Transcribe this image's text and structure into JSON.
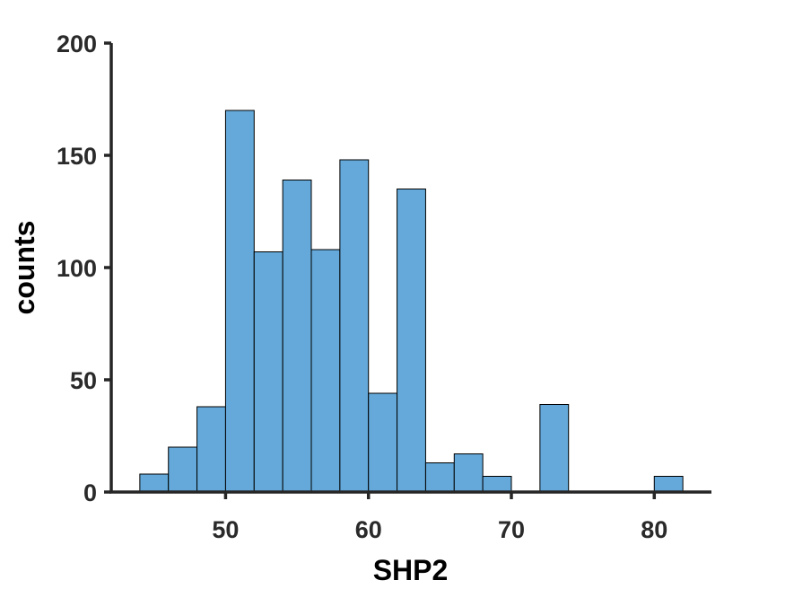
{
  "chart_data": {
    "type": "bar",
    "title": "",
    "xlabel": "SHP2",
    "ylabel": "counts",
    "xlim": [
      42,
      84
    ],
    "ylim": [
      0,
      200
    ],
    "xticks": [
      50,
      60,
      70,
      80
    ],
    "yticks": [
      0,
      50,
      100,
      150,
      200
    ],
    "bin_width": 2,
    "bins": [
      {
        "x0": 44,
        "x1": 46,
        "count": 8
      },
      {
        "x0": 46,
        "x1": 48,
        "count": 20
      },
      {
        "x0": 48,
        "x1": 50,
        "count": 38
      },
      {
        "x0": 50,
        "x1": 52,
        "count": 170
      },
      {
        "x0": 52,
        "x1": 54,
        "count": 107
      },
      {
        "x0": 54,
        "x1": 56,
        "count": 139
      },
      {
        "x0": 56,
        "x1": 58,
        "count": 108
      },
      {
        "x0": 58,
        "x1": 60,
        "count": 148
      },
      {
        "x0": 60,
        "x1": 62,
        "count": 44
      },
      {
        "x0": 62,
        "x1": 64,
        "count": 135
      },
      {
        "x0": 64,
        "x1": 66,
        "count": 13
      },
      {
        "x0": 66,
        "x1": 68,
        "count": 17
      },
      {
        "x0": 68,
        "x1": 70,
        "count": 7
      },
      {
        "x0": 72,
        "x1": 74,
        "count": 39
      },
      {
        "x0": 80,
        "x1": 82,
        "count": 7
      }
    ],
    "bar_color": "#64a9d9",
    "edge_color": "#000000",
    "axis_color": "#262626",
    "grid": false,
    "legend": false
  }
}
